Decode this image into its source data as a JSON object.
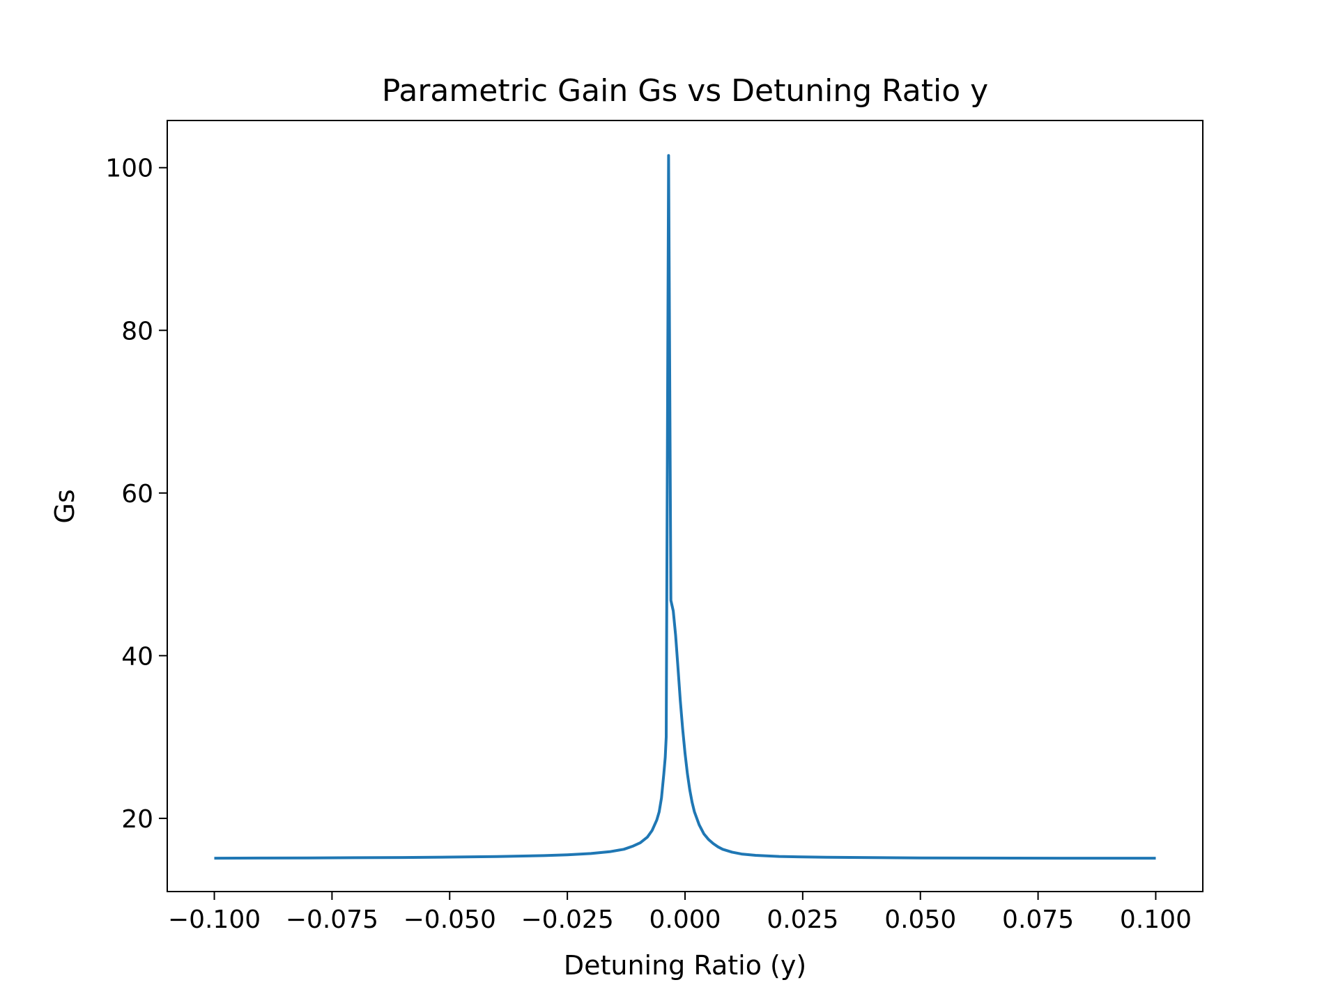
{
  "chart_data": {
    "type": "line",
    "title": "Parametric Gain Gs vs Detuning Ratio y",
    "xlabel": "Detuning Ratio (y)",
    "ylabel": "Gs",
    "xlim": [
      -0.11,
      0.11
    ],
    "ylim": [
      11.0,
      105.8
    ],
    "xticks": [
      -0.1,
      -0.075,
      -0.05,
      -0.025,
      0.0,
      0.025,
      0.05,
      0.075,
      0.1
    ],
    "xtick_labels": [
      "−0.100",
      "−0.075",
      "−0.050",
      "−0.025",
      "0.000",
      "0.025",
      "0.050",
      "0.075",
      "0.100"
    ],
    "yticks": [
      20,
      40,
      60,
      80,
      100
    ],
    "ytick_labels": [
      "20",
      "40",
      "60",
      "80",
      "100"
    ],
    "grid": false,
    "legend": "none",
    "series": [
      {
        "color": "#1f77b4",
        "x": [
          -0.1,
          -0.09,
          -0.08,
          -0.07,
          -0.06,
          -0.05,
          -0.04,
          -0.03,
          -0.025,
          -0.02,
          -0.016,
          -0.013,
          -0.011,
          -0.0095,
          -0.008,
          -0.007,
          -0.006,
          -0.0055,
          -0.005,
          -0.0045,
          -0.0042,
          -0.004,
          -0.0035,
          -0.003,
          -0.0025,
          -0.002,
          -0.0015,
          -0.001,
          -0.0005,
          0.0,
          0.0005,
          0.001,
          0.0015,
          0.002,
          0.003,
          0.004,
          0.005,
          0.006,
          0.007,
          0.008,
          0.01,
          0.012,
          0.015,
          0.02,
          0.025,
          0.03,
          0.04,
          0.05,
          0.06,
          0.07,
          0.08,
          0.09,
          0.1
        ],
        "y": [
          15.1,
          15.12,
          15.14,
          15.16,
          15.19,
          15.24,
          15.3,
          15.42,
          15.52,
          15.68,
          15.9,
          16.2,
          16.6,
          17.0,
          17.7,
          18.5,
          19.8,
          20.8,
          22.5,
          25.5,
          27.5,
          30.0,
          101.5,
          46.8,
          45.5,
          42.5,
          38.5,
          34.5,
          31.0,
          28.0,
          25.5,
          23.5,
          22.0,
          20.8,
          19.2,
          18.1,
          17.4,
          16.9,
          16.5,
          16.2,
          15.85,
          15.62,
          15.45,
          15.32,
          15.26,
          15.22,
          15.17,
          15.14,
          15.12,
          15.11,
          15.1,
          15.1,
          15.1
        ]
      }
    ]
  }
}
